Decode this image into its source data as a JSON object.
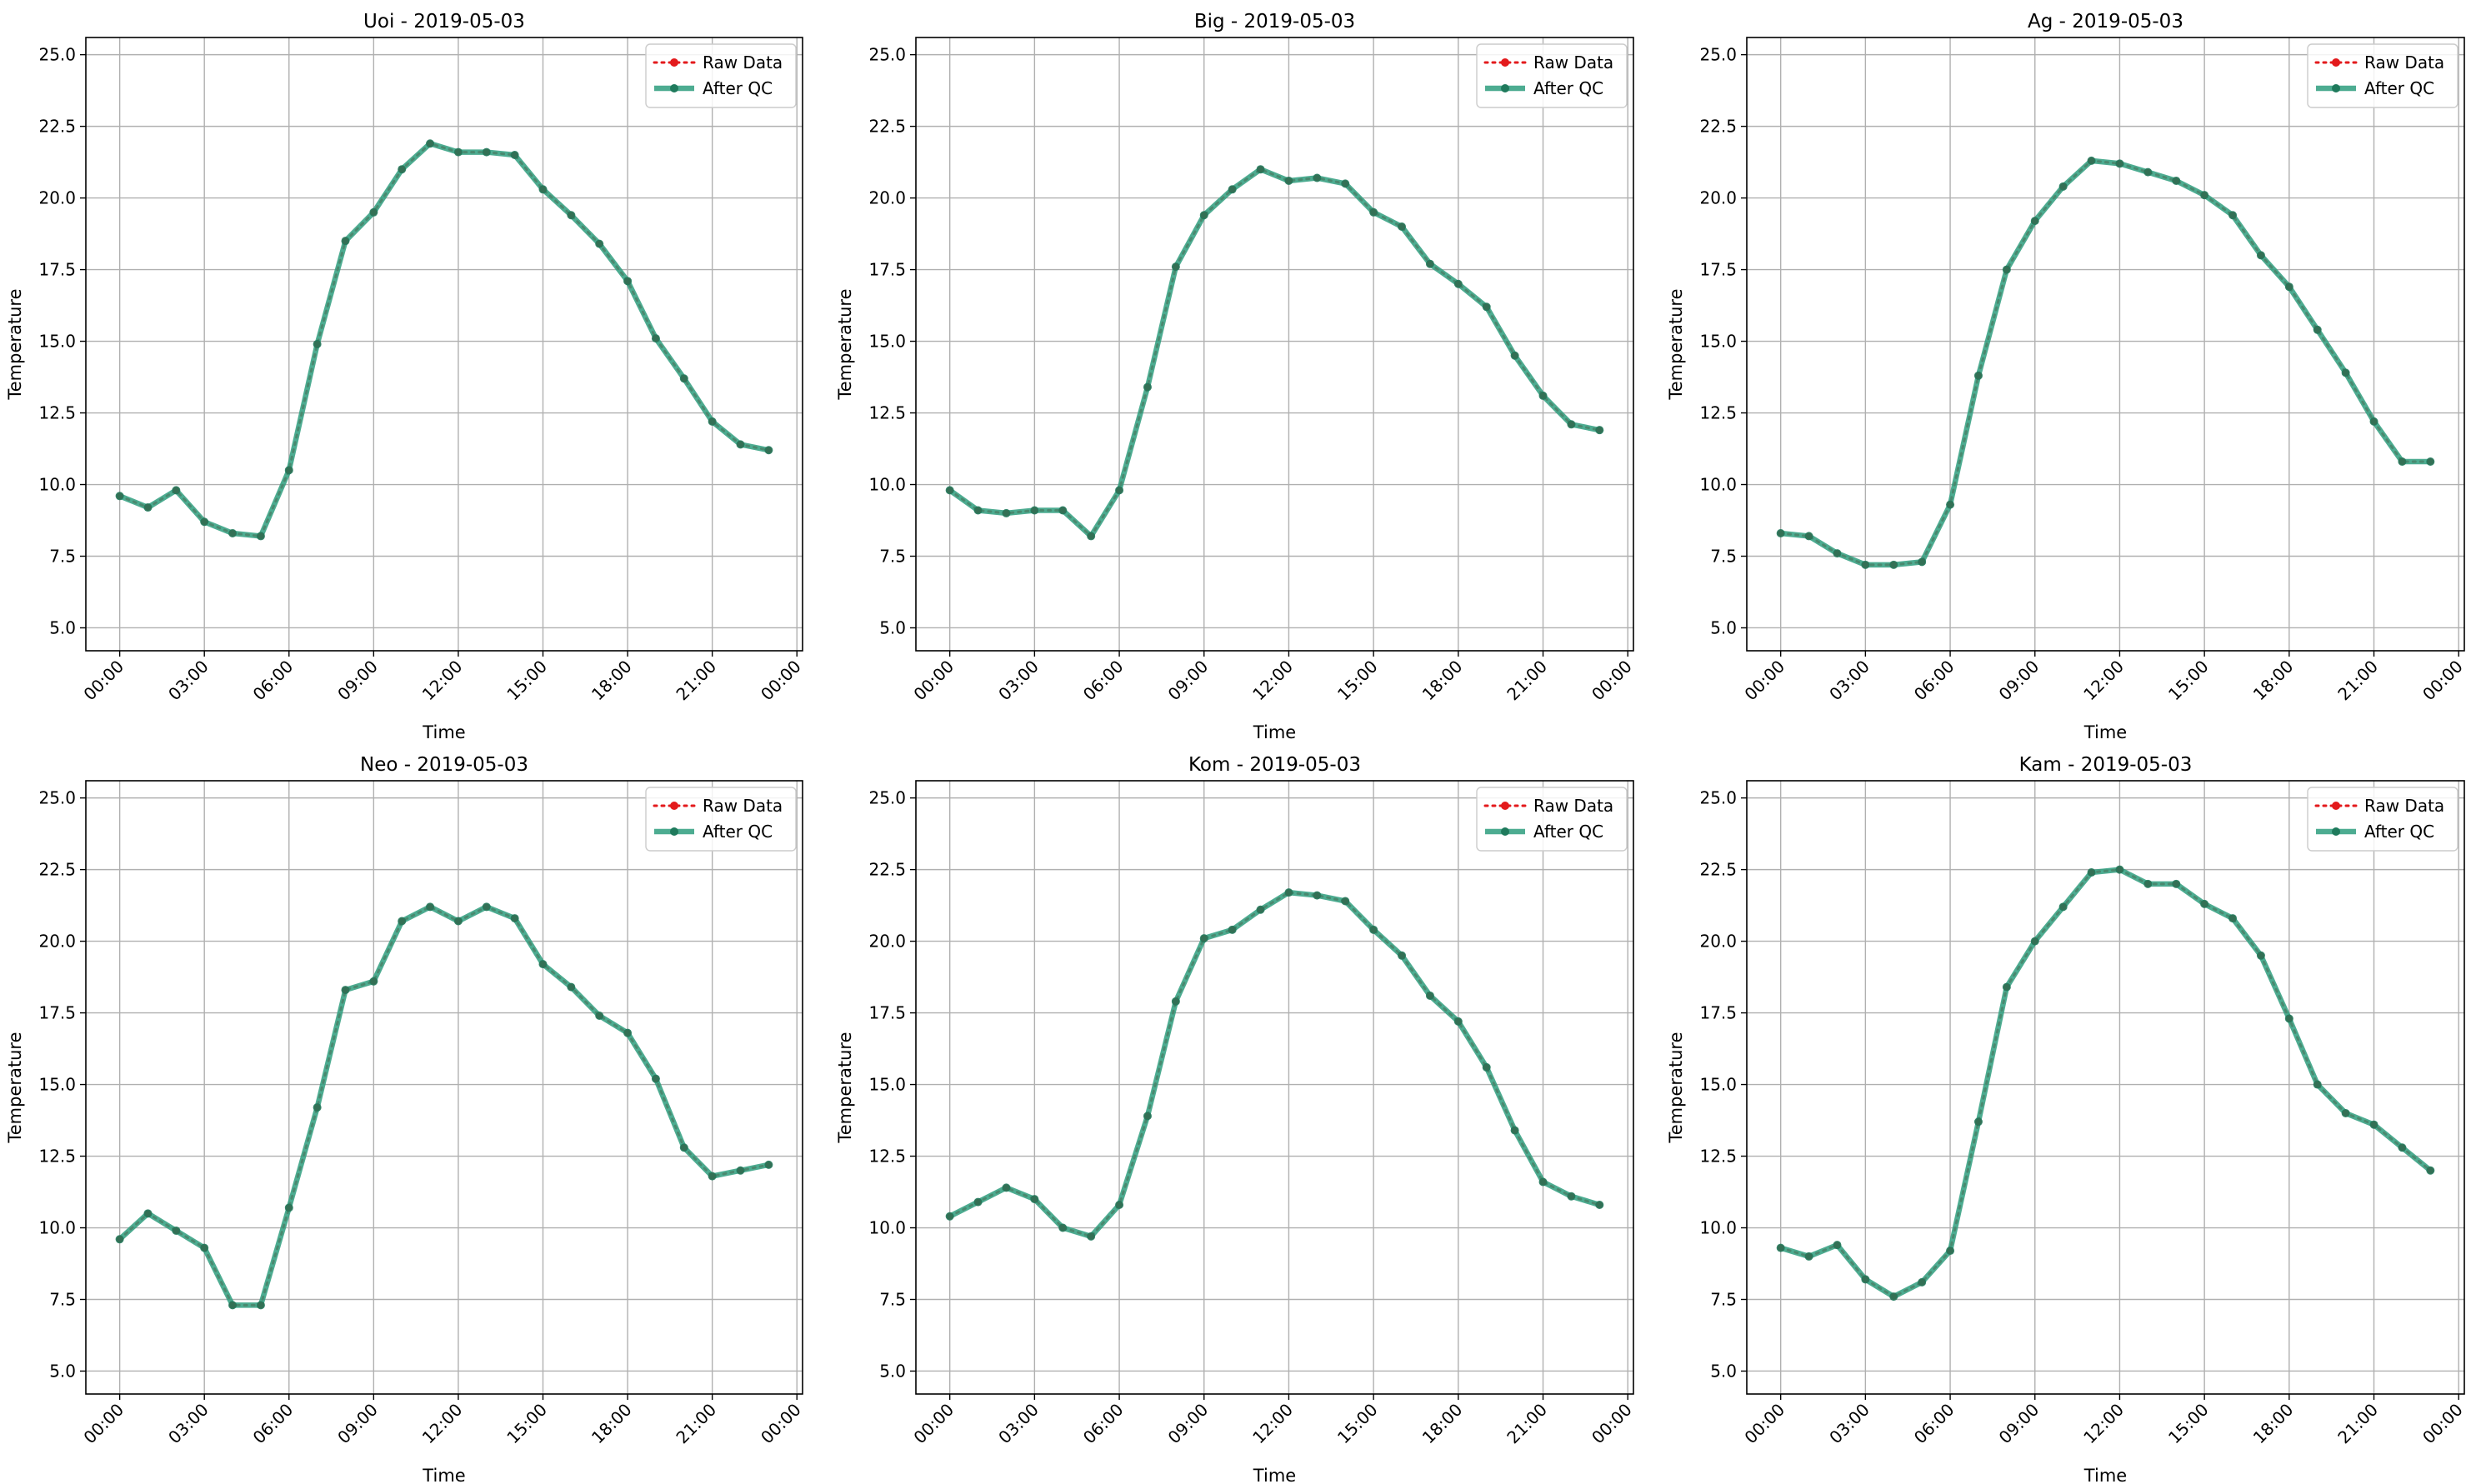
{
  "figure": {
    "xlabel": "Time",
    "ylabel": "Temperature",
    "x_tick_labels": [
      "00:00",
      "03:00",
      "06:00",
      "09:00",
      "12:00",
      "15:00",
      "18:00",
      "21:00",
      "00:00"
    ],
    "y_tick_labels": [
      "5.0",
      "7.5",
      "10.0",
      "12.5",
      "15.0",
      "17.5",
      "20.0",
      "22.5",
      "25.0"
    ],
    "legend": {
      "raw": "Raw Data",
      "qc": "After QC",
      "placement": "upper right"
    },
    "colors": {
      "raw": "#e31a1c",
      "qc": "#2e9e7e",
      "qc_marker": "#1f7a5c",
      "grid": "#b0b0b0"
    }
  },
  "chart_data": [
    {
      "type": "line",
      "title": "Uoi - 2019-05-03",
      "x": [
        "00:00",
        "01:00",
        "02:00",
        "03:00",
        "04:00",
        "05:00",
        "06:00",
        "07:00",
        "08:00",
        "09:00",
        "10:00",
        "11:00",
        "12:00",
        "13:00",
        "14:00",
        "15:00",
        "16:00",
        "17:00",
        "18:00",
        "19:00",
        "20:00",
        "21:00",
        "22:00",
        "23:00"
      ],
      "series": [
        {
          "name": "Raw Data",
          "values": [
            9.6,
            9.2,
            9.8,
            8.7,
            8.3,
            8.2,
            10.5,
            14.9,
            18.5,
            19.5,
            21.0,
            21.9,
            21.6,
            21.6,
            21.5,
            20.3,
            19.4,
            18.4,
            17.1,
            15.1,
            13.7,
            12.2,
            11.4,
            11.2
          ]
        },
        {
          "name": "After QC",
          "values": [
            9.6,
            9.2,
            9.8,
            8.7,
            8.3,
            8.2,
            10.5,
            14.9,
            18.5,
            19.5,
            21.0,
            21.9,
            21.6,
            21.6,
            21.5,
            20.3,
            19.4,
            18.4,
            17.1,
            15.1,
            13.7,
            12.2,
            11.4,
            11.2
          ]
        }
      ],
      "ylim": [
        4.2,
        25.6
      ],
      "grid": true,
      "legend_loc": "top-right"
    },
    {
      "type": "line",
      "title": "Big - 2019-05-03",
      "x": [
        "00:00",
        "01:00",
        "02:00",
        "03:00",
        "04:00",
        "05:00",
        "06:00",
        "07:00",
        "08:00",
        "09:00",
        "10:00",
        "11:00",
        "12:00",
        "13:00",
        "14:00",
        "15:00",
        "16:00",
        "17:00",
        "18:00",
        "19:00",
        "20:00",
        "21:00",
        "22:00",
        "23:00"
      ],
      "series": [
        {
          "name": "Raw Data",
          "values": [
            9.8,
            9.1,
            9.0,
            9.1,
            9.1,
            8.2,
            9.8,
            13.4,
            17.6,
            19.4,
            20.3,
            21.0,
            20.6,
            20.7,
            20.5,
            19.5,
            19.0,
            17.7,
            17.0,
            16.2,
            14.5,
            13.1,
            12.1,
            11.9
          ]
        },
        {
          "name": "After QC",
          "values": [
            9.8,
            9.1,
            9.0,
            9.1,
            9.1,
            8.2,
            9.8,
            13.4,
            17.6,
            19.4,
            20.3,
            21.0,
            20.6,
            20.7,
            20.5,
            19.5,
            19.0,
            17.7,
            17.0,
            16.2,
            14.5,
            13.1,
            12.1,
            11.9
          ]
        }
      ],
      "ylim": [
        4.2,
        25.6
      ],
      "grid": true,
      "legend_loc": "top-right"
    },
    {
      "type": "line",
      "title": "Ag - 2019-05-03",
      "x": [
        "00:00",
        "01:00",
        "02:00",
        "03:00",
        "04:00",
        "05:00",
        "06:00",
        "07:00",
        "08:00",
        "09:00",
        "10:00",
        "11:00",
        "12:00",
        "13:00",
        "14:00",
        "15:00",
        "16:00",
        "17:00",
        "18:00",
        "19:00",
        "20:00",
        "21:00",
        "22:00",
        "23:00"
      ],
      "series": [
        {
          "name": "Raw Data",
          "values": [
            8.3,
            8.2,
            7.6,
            7.2,
            7.2,
            7.3,
            9.3,
            13.8,
            17.5,
            19.2,
            20.4,
            21.3,
            21.2,
            20.9,
            20.6,
            20.1,
            19.4,
            18.0,
            16.9,
            15.4,
            13.9,
            12.2,
            10.8,
            10.8
          ]
        },
        {
          "name": "After QC",
          "values": [
            8.3,
            8.2,
            7.6,
            7.2,
            7.2,
            7.3,
            9.3,
            13.8,
            17.5,
            19.2,
            20.4,
            21.3,
            21.2,
            20.9,
            20.6,
            20.1,
            19.4,
            18.0,
            16.9,
            15.4,
            13.9,
            12.2,
            10.8,
            10.8
          ]
        }
      ],
      "ylim": [
        4.2,
        25.6
      ],
      "grid": true,
      "legend_loc": "top-right"
    },
    {
      "type": "line",
      "title": "Neo - 2019-05-03",
      "x": [
        "00:00",
        "01:00",
        "02:00",
        "03:00",
        "04:00",
        "05:00",
        "06:00",
        "07:00",
        "08:00",
        "09:00",
        "10:00",
        "11:00",
        "12:00",
        "13:00",
        "14:00",
        "15:00",
        "16:00",
        "17:00",
        "18:00",
        "19:00",
        "20:00",
        "21:00",
        "22:00",
        "23:00"
      ],
      "series": [
        {
          "name": "Raw Data",
          "values": [
            9.6,
            10.5,
            9.9,
            9.3,
            7.3,
            7.3,
            10.7,
            14.2,
            18.3,
            18.6,
            20.7,
            21.2,
            20.7,
            21.2,
            20.8,
            19.2,
            18.4,
            17.4,
            16.8,
            15.2,
            12.8,
            11.8,
            12.0,
            12.2
          ]
        },
        {
          "name": "After QC",
          "values": [
            9.6,
            10.5,
            9.9,
            9.3,
            7.3,
            7.3,
            10.7,
            14.2,
            18.3,
            18.6,
            20.7,
            21.2,
            20.7,
            21.2,
            20.8,
            19.2,
            18.4,
            17.4,
            16.8,
            15.2,
            12.8,
            11.8,
            12.0,
            12.2
          ]
        }
      ],
      "ylim": [
        4.2,
        25.6
      ],
      "grid": true,
      "legend_loc": "top-right"
    },
    {
      "type": "line",
      "title": "Kom - 2019-05-03",
      "x": [
        "00:00",
        "01:00",
        "02:00",
        "03:00",
        "04:00",
        "05:00",
        "06:00",
        "07:00",
        "08:00",
        "09:00",
        "10:00",
        "11:00",
        "12:00",
        "13:00",
        "14:00",
        "15:00",
        "16:00",
        "17:00",
        "18:00",
        "19:00",
        "20:00",
        "21:00",
        "22:00",
        "23:00"
      ],
      "series": [
        {
          "name": "Raw Data",
          "values": [
            10.4,
            10.9,
            11.4,
            11.0,
            10.0,
            9.7,
            10.8,
            13.9,
            17.9,
            20.1,
            20.4,
            21.1,
            21.7,
            21.6,
            21.4,
            20.4,
            19.5,
            18.1,
            17.2,
            15.6,
            13.4,
            11.6,
            11.1,
            10.8
          ]
        },
        {
          "name": "After QC",
          "values": [
            10.4,
            10.9,
            11.4,
            11.0,
            10.0,
            9.7,
            10.8,
            13.9,
            17.9,
            20.1,
            20.4,
            21.1,
            21.7,
            21.6,
            21.4,
            20.4,
            19.5,
            18.1,
            17.2,
            15.6,
            13.4,
            11.6,
            11.1,
            10.8
          ]
        }
      ],
      "ylim": [
        4.2,
        25.6
      ],
      "grid": true,
      "legend_loc": "top-right"
    },
    {
      "type": "line",
      "title": "Kam - 2019-05-03",
      "x": [
        "00:00",
        "01:00",
        "02:00",
        "03:00",
        "04:00",
        "05:00",
        "06:00",
        "07:00",
        "08:00",
        "09:00",
        "10:00",
        "11:00",
        "12:00",
        "13:00",
        "14:00",
        "15:00",
        "16:00",
        "17:00",
        "18:00",
        "19:00",
        "20:00",
        "21:00",
        "22:00",
        "23:00"
      ],
      "series": [
        {
          "name": "Raw Data",
          "values": [
            9.3,
            9.0,
            9.4,
            8.2,
            7.6,
            8.1,
            9.2,
            13.7,
            18.4,
            20.0,
            21.2,
            22.4,
            22.5,
            22.0,
            22.0,
            21.3,
            20.8,
            19.5,
            17.3,
            15.0,
            14.0,
            13.6,
            12.8,
            12.0
          ]
        },
        {
          "name": "After QC",
          "values": [
            9.3,
            9.0,
            9.4,
            8.2,
            7.6,
            8.1,
            9.2,
            13.7,
            18.4,
            20.0,
            21.2,
            22.4,
            22.5,
            22.0,
            22.0,
            21.3,
            20.8,
            19.5,
            17.3,
            15.0,
            14.0,
            13.6,
            12.8,
            12.0
          ]
        }
      ],
      "ylim": [
        4.2,
        25.6
      ],
      "grid": true,
      "legend_loc": "top-right"
    }
  ]
}
